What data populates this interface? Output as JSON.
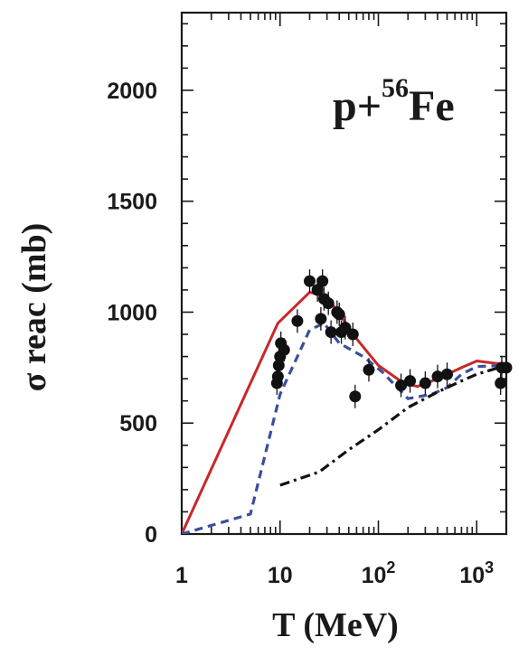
{
  "chart_data": {
    "type": "line",
    "title": "",
    "annotation": {
      "base": "p+",
      "superscript": "56",
      "element": "Fe"
    },
    "xlabel": "T (MeV)",
    "ylabel": "σ reac (mb)",
    "x_scale": "log",
    "xlim": [
      1,
      2000
    ],
    "ylim": [
      0,
      2350
    ],
    "x_ticks": [
      {
        "value": 1,
        "label": "1"
      },
      {
        "value": 10,
        "label": "10"
      },
      {
        "value": 100,
        "label": "10",
        "exp": "2"
      },
      {
        "value": 1000,
        "label": "10",
        "exp": "3"
      }
    ],
    "y_ticks": [
      {
        "value": 0,
        "label": "0"
      },
      {
        "value": 500,
        "label": "500"
      },
      {
        "value": 1000,
        "label": "1000"
      },
      {
        "value": 1500,
        "label": "1500"
      },
      {
        "value": 2000,
        "label": "2000"
      }
    ],
    "grid": false,
    "series": [
      {
        "style": "solid",
        "color": "#c8282a",
        "points": [
          [
            1,
            0
          ],
          [
            9.5,
            950
          ],
          [
            20,
            1090
          ],
          [
            30,
            1070
          ],
          [
            45,
            960
          ],
          [
            60,
            880
          ],
          [
            100,
            760
          ],
          [
            180,
            680
          ],
          [
            250,
            665
          ],
          [
            350,
            690
          ],
          [
            500,
            720
          ],
          [
            700,
            750
          ],
          [
            1000,
            780
          ],
          [
            1500,
            770
          ],
          [
            2000,
            765
          ]
        ]
      },
      {
        "style": "dashed",
        "color": "#3a4f9c",
        "points": [
          [
            1,
            0
          ],
          [
            5,
            90
          ],
          [
            10,
            630
          ],
          [
            20,
            920
          ],
          [
            28,
            950
          ],
          [
            40,
            860
          ],
          [
            70,
            800
          ],
          [
            110,
            730
          ],
          [
            200,
            610
          ],
          [
            350,
            630
          ],
          [
            500,
            660
          ],
          [
            700,
            720
          ],
          [
            1000,
            755
          ],
          [
            2000,
            760
          ]
        ]
      },
      {
        "style": "dashdot",
        "color": "#111111",
        "points": [
          [
            10,
            220
          ],
          [
            25,
            280
          ],
          [
            50,
            380
          ],
          [
            100,
            470
          ],
          [
            200,
            570
          ],
          [
            400,
            640
          ],
          [
            700,
            690
          ],
          [
            1000,
            720
          ],
          [
            2000,
            760
          ]
        ]
      },
      {
        "style": "points",
        "color": "#111111",
        "points": [
          [
            9.3,
            680
          ],
          [
            9.5,
            710
          ],
          [
            9.7,
            760
          ],
          [
            10,
            800
          ],
          [
            10.2,
            860
          ],
          [
            11,
            830
          ],
          [
            15,
            960
          ],
          [
            20,
            1140
          ],
          [
            24,
            1100
          ],
          [
            27,
            1140
          ],
          [
            28,
            1060
          ],
          [
            26,
            970
          ],
          [
            31,
            1040
          ],
          [
            33,
            910
          ],
          [
            38,
            1000
          ],
          [
            40,
            990
          ],
          [
            42,
            910
          ],
          [
            46,
            930
          ],
          [
            55,
            900
          ],
          [
            58,
            620
          ],
          [
            80,
            740
          ],
          [
            170,
            670
          ],
          [
            210,
            690
          ],
          [
            300,
            680
          ],
          [
            400,
            710
          ],
          [
            500,
            720
          ],
          [
            1750,
            680
          ],
          [
            1800,
            750
          ],
          [
            2000,
            750
          ]
        ]
      }
    ]
  }
}
